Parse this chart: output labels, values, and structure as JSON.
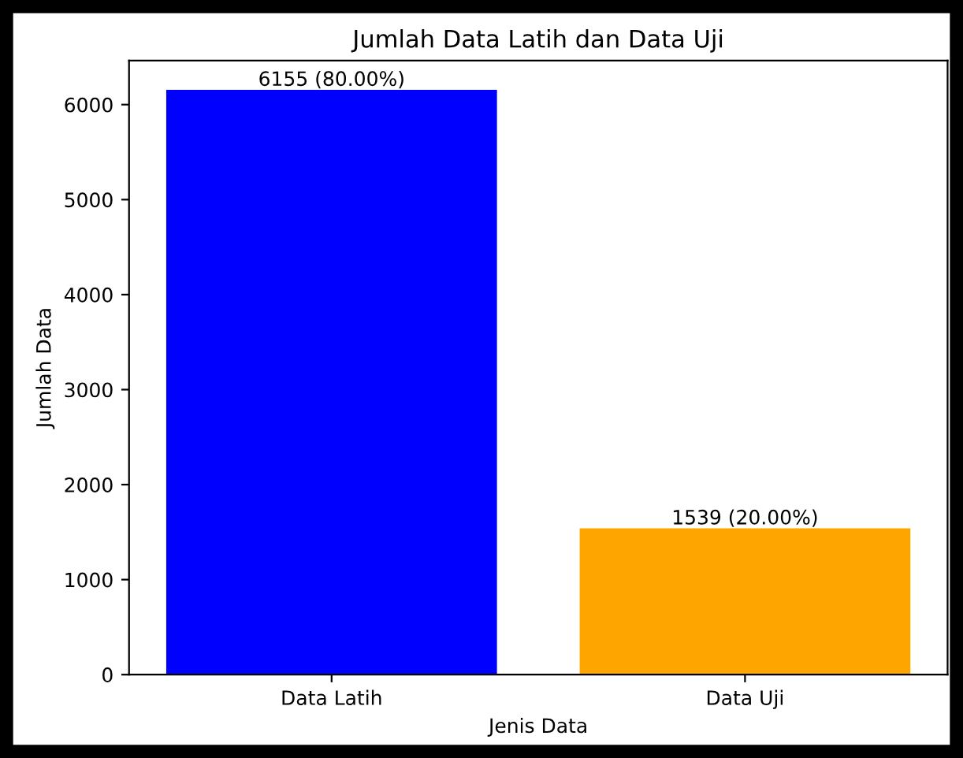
{
  "chart_data": {
    "type": "bar",
    "title": "Jumlah Data Latih dan Data Uji",
    "xlabel": "Jenis Data",
    "ylabel": "Jumlah Data",
    "categories": [
      "Data Latih",
      "Data Uji"
    ],
    "values": [
      6155,
      1539
    ],
    "colors": [
      "#0000ff",
      "#ffa500"
    ],
    "value_labels": [
      "6155 (80.00%)",
      "1539 (20.00%)"
    ],
    "ylim": [
      0,
      6462.75
    ],
    "yticks": [
      0,
      1000,
      2000,
      3000,
      4000,
      5000,
      6000
    ],
    "grid": false,
    "legend": false
  }
}
